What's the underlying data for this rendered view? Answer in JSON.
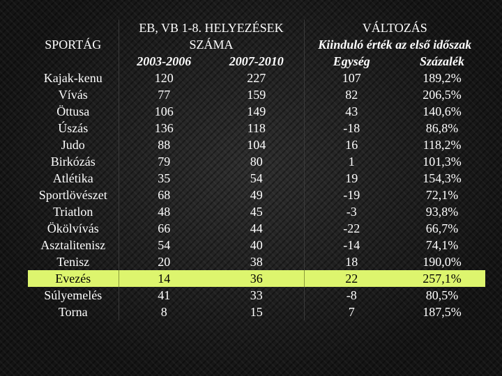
{
  "header": {
    "sport_label": "SPORTÁG",
    "placements_line1": "EB, VB 1-8. HELYEZÉSEK",
    "placements_line2": "SZÁMA",
    "change_label": "VÁLTOZÁS",
    "change_subtitle": "Kiinduló érték az első időszak",
    "period1": "2003-2006",
    "period2": "2007-2010",
    "unit_label": "Egység",
    "percent_label": "Százalék"
  },
  "highlight_color": "#ddf56e",
  "rows": [
    {
      "sport": "Kajak-kenu",
      "p1": "120",
      "p2": "227",
      "unit": "107",
      "pct": "189,2%"
    },
    {
      "sport": "Vívás",
      "p1": "77",
      "p2": "159",
      "unit": "82",
      "pct": "206,5%"
    },
    {
      "sport": "Öttusa",
      "p1": "106",
      "p2": "149",
      "unit": "43",
      "pct": "140,6%"
    },
    {
      "sport": "Úszás",
      "p1": "136",
      "p2": "118",
      "unit": "-18",
      "pct": "86,8%"
    },
    {
      "sport": "Judo",
      "p1": "88",
      "p2": "104",
      "unit": "16",
      "pct": "118,2%"
    },
    {
      "sport": "Birkózás",
      "p1": "79",
      "p2": "80",
      "unit": "1",
      "pct": "101,3%"
    },
    {
      "sport": "Atlétika",
      "p1": "35",
      "p2": "54",
      "unit": "19",
      "pct": "154,3%"
    },
    {
      "sport": "Sportlövészet",
      "p1": "68",
      "p2": "49",
      "unit": "-19",
      "pct": "72,1%"
    },
    {
      "sport": "Triatlon",
      "p1": "48",
      "p2": "45",
      "unit": "-3",
      "pct": "93,8%"
    },
    {
      "sport": "Ökölvívás",
      "p1": "66",
      "p2": "44",
      "unit": "-22",
      "pct": "66,7%"
    },
    {
      "sport": "Asztalitenisz",
      "p1": "54",
      "p2": "40",
      "unit": "-14",
      "pct": "74,1%"
    },
    {
      "sport": "Tenisz",
      "p1": "20",
      "p2": "38",
      "unit": "18",
      "pct": "190,0%"
    },
    {
      "sport": "Evezés",
      "p1": "14",
      "p2": "36",
      "unit": "22",
      "pct": "257,1%"
    },
    {
      "sport": "Súlyemelés",
      "p1": "41",
      "p2": "33",
      "unit": "-8",
      "pct": "80,5%"
    },
    {
      "sport": "Torna",
      "p1": "8",
      "p2": "15",
      "unit": "7",
      "pct": "187,5%"
    }
  ]
}
